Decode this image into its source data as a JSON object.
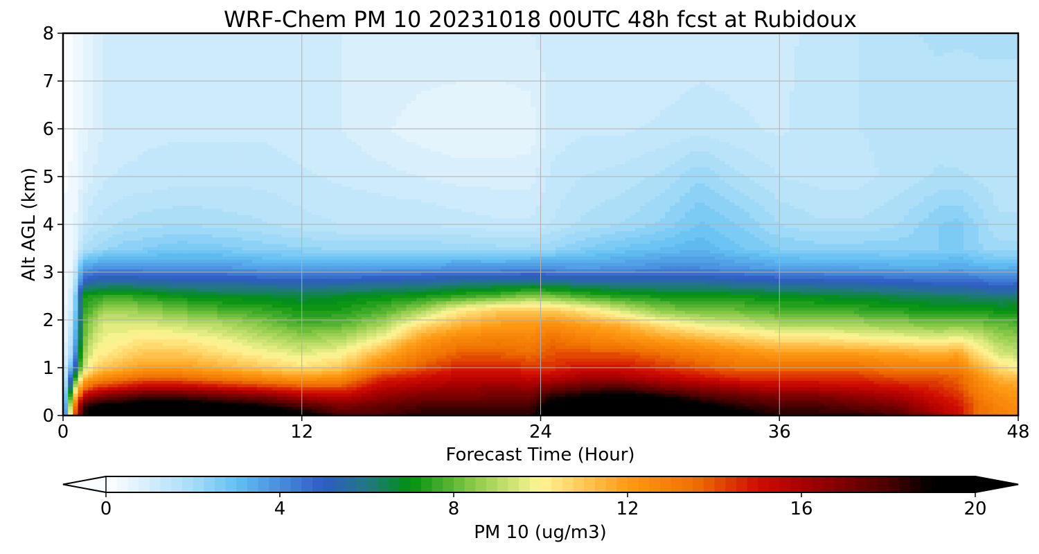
{
  "chart_data": {
    "type": "heatmap",
    "title": "WRF-Chem PM 10  20231018 00UTC 48h fcst at Rubidoux",
    "xlabel": "Forecast Time (Hour)",
    "ylabel": "Alt AGL (km)",
    "xlim": [
      0,
      48
    ],
    "ylim": [
      0,
      8
    ],
    "xticks": [
      0,
      12,
      24,
      36,
      48
    ],
    "yticks": [
      0,
      1,
      2,
      3,
      4,
      5,
      6,
      7,
      8
    ],
    "grid": true,
    "colorbar": {
      "label": "PM 10  (ug/m3)",
      "orientation": "horizontal",
      "placement": "bottom",
      "extend": "both",
      "range": [
        0,
        20
      ],
      "ticks": [
        0,
        4,
        8,
        12,
        16,
        20
      ],
      "colors": [
        {
          "value": 0,
          "color": "#ffffff"
        },
        {
          "value": 2,
          "color": "#a7dcf7"
        },
        {
          "value": 3,
          "color": "#62c0f3"
        },
        {
          "value": 5,
          "color": "#2f5bc5"
        },
        {
          "value": 6,
          "color": "#227783"
        },
        {
          "value": 7,
          "color": "#00910f"
        },
        {
          "value": 8.5,
          "color": "#8fcc4a"
        },
        {
          "value": 10,
          "color": "#fff596"
        },
        {
          "value": 12,
          "color": "#ff9a14"
        },
        {
          "value": 13.5,
          "color": "#f07200"
        },
        {
          "value": 15,
          "color": "#d00c00"
        },
        {
          "value": 16,
          "color": "#aa0000"
        },
        {
          "value": 18,
          "color": "#4a0000"
        },
        {
          "value": 19,
          "color": "#000000"
        }
      ]
    },
    "hours": [
      0,
      0.5,
      1,
      1.5,
      2,
      3,
      4,
      6,
      8,
      10,
      12,
      14,
      16,
      18,
      20,
      22,
      23.5,
      24.5,
      26,
      28,
      30,
      32,
      34,
      36,
      38,
      40,
      42,
      44,
      45,
      46,
      47,
      48
    ],
    "alts": [
      0,
      0.2,
      0.4,
      0.6,
      0.8,
      1.0,
      1.3,
      1.6,
      1.9,
      2.2,
      2.5,
      2.8,
      3.1,
      3.5,
      4.0,
      5.0,
      6.0,
      8.0
    ],
    "pm10": [
      [
        0.5,
        0.5,
        0.5,
        0.4,
        0.4,
        0.4,
        0.4,
        0.3,
        0.3,
        0.3,
        0.3,
        0.3,
        0.3,
        0.3,
        0.3,
        0.2,
        0.2,
        0.2
      ],
      [
        13,
        12,
        10,
        8,
        6,
        4,
        2.5,
        2,
        1.5,
        1.2,
        1,
        0.8,
        0.5,
        0.3,
        0.3,
        0.3,
        0.2,
        0.2
      ],
      [
        18.5,
        18,
        15.5,
        13,
        11,
        9,
        8.5,
        8,
        7.8,
        7.5,
        7.2,
        5,
        3.5,
        1.8,
        1.2,
        0.8,
        0.6,
        0.5
      ],
      [
        19.5,
        19,
        16.5,
        14,
        12,
        10.5,
        9.8,
        9.3,
        8.8,
        8,
        7.3,
        5.5,
        3.8,
        2,
        1.5,
        1,
        0.8,
        0.8
      ],
      [
        19.5,
        19.5,
        17,
        14.5,
        12.5,
        11,
        10.2,
        9.8,
        9.5,
        8.8,
        7.5,
        5.6,
        3.9,
        2.2,
        1.6,
        1.2,
        1,
        1
      ],
      [
        20,
        19.5,
        17.5,
        15,
        13,
        11.5,
        10.6,
        10,
        9.5,
        8.8,
        7.6,
        5.7,
        4,
        2.4,
        1.8,
        1.3,
        1.1,
        1.1
      ],
      [
        20,
        20,
        18,
        15.5,
        13.5,
        12,
        11,
        10.3,
        9.6,
        8.6,
        7.4,
        5.5,
        3.9,
        2.5,
        1.9,
        1.3,
        1.2,
        1.1
      ],
      [
        20,
        20,
        18,
        15.5,
        13.5,
        12,
        11,
        10.2,
        9.3,
        8.2,
        7,
        5.4,
        3.8,
        2.7,
        2,
        1.4,
        1.2,
        1.1
      ],
      [
        20,
        19.5,
        17.5,
        15,
        13,
        11.5,
        10.5,
        9.8,
        9,
        7.8,
        6.8,
        5.4,
        3.8,
        2.6,
        1.9,
        1.4,
        1.2,
        1.1
      ],
      [
        20,
        19,
        17,
        14.5,
        12.5,
        11,
        10,
        9.2,
        8.4,
        7.6,
        6.8,
        5.3,
        3.6,
        2.4,
        1.8,
        1.4,
        1.2,
        1.1
      ],
      [
        19.5,
        18,
        16,
        14,
        12,
        10.5,
        9.6,
        8.7,
        7.8,
        7.2,
        6.6,
        5.2,
        3.5,
        2.3,
        1.6,
        1.3,
        1.1,
        1.1
      ],
      [
        18,
        17,
        15.5,
        14,
        12.5,
        11,
        10,
        9,
        8,
        7.3,
        6.8,
        5.3,
        3.5,
        2.2,
        1.5,
        1.2,
        1,
        1
      ],
      [
        18,
        17.5,
        16.5,
        15.5,
        14.5,
        13,
        11.5,
        10,
        8.8,
        7.8,
        7,
        5.4,
        3.6,
        2.2,
        1.5,
        1.1,
        0.8,
        1
      ],
      [
        18.5,
        18,
        17,
        16,
        15,
        14,
        13,
        12,
        10.5,
        8.8,
        7.2,
        5.5,
        3.7,
        2.2,
        1.5,
        1,
        0.6,
        1
      ],
      [
        18.5,
        18,
        17,
        16.3,
        15.5,
        14.8,
        13.8,
        12.8,
        11.5,
        10.3,
        7.6,
        5.8,
        3.8,
        2.2,
        1.4,
        0.9,
        0.5,
        1
      ],
      [
        18.5,
        18,
        17.2,
        16.5,
        15.5,
        14.8,
        13.8,
        13,
        12,
        11,
        8,
        5.8,
        3.8,
        2.1,
        1.3,
        0.9,
        0.5,
        1
      ],
      [
        18.5,
        18,
        17.2,
        16.3,
        15.3,
        14.5,
        13.5,
        12.8,
        12,
        11,
        8.5,
        5.9,
        3.9,
        2.1,
        1.3,
        0.9,
        0.6,
        1
      ],
      [
        20,
        19.5,
        18.5,
        17,
        15.5,
        14.5,
        14,
        13.5,
        12.5,
        11,
        8.3,
        5.9,
        3.8,
        2.2,
        1.5,
        1.3,
        1.1,
        1.1
      ],
      [
        20,
        20,
        19,
        17.5,
        16,
        15,
        14,
        13,
        12,
        10.5,
        7.8,
        5.7,
        3.7,
        2.5,
        1.8,
        1.5,
        1.2,
        1.1
      ],
      [
        20,
        20,
        19.5,
        18,
        16,
        15,
        14,
        12.5,
        11.5,
        9.5,
        7.4,
        5.6,
        3.8,
        2.8,
        2,
        1.6,
        1.2,
        1
      ],
      [
        20,
        20,
        19,
        17,
        15.5,
        14.5,
        13.5,
        12,
        10.5,
        8.5,
        7.2,
        5.6,
        4,
        3,
        2.3,
        1.8,
        1.3,
        1
      ],
      [
        20,
        19.5,
        18,
        16.5,
        15,
        14,
        13,
        11.5,
        9.8,
        8.2,
        7.2,
        5.6,
        4,
        3.2,
        2.8,
        2.2,
        1.4,
        1.1
      ],
      [
        19.5,
        18.5,
        17.5,
        16,
        14.5,
        13.5,
        12.5,
        11,
        9.5,
        8.1,
        7.1,
        5.4,
        3.8,
        2.8,
        2.5,
        1.8,
        1.3,
        1.1
      ],
      [
        18.5,
        18,
        17,
        15.5,
        14.5,
        13.5,
        12,
        10.5,
        9,
        7.8,
        6.9,
        5.3,
        3.6,
        2.5,
        2,
        1.5,
        1.2,
        1.2
      ],
      [
        18.5,
        18,
        17,
        15.5,
        14.5,
        13.5,
        12,
        10.5,
        9,
        7.8,
        6.8,
        5.2,
        3.5,
        2.4,
        1.8,
        1.4,
        1.4,
        1.3
      ],
      [
        18.5,
        17.5,
        16.5,
        15.3,
        14.5,
        13.5,
        12,
        10.2,
        8.8,
        7.6,
        6.7,
        5.1,
        3.5,
        2.4,
        1.8,
        1.4,
        1.5,
        1.5
      ],
      [
        18,
        17,
        16,
        15,
        14,
        13,
        11.8,
        10,
        8.6,
        7.4,
        6.5,
        5,
        3.4,
        2.4,
        2,
        1.6,
        1.6,
        1.7
      ],
      [
        16,
        15.5,
        15,
        14.5,
        14,
        13,
        11.5,
        9.8,
        8.3,
        7.2,
        6.3,
        4.8,
        3.4,
        2.5,
        2.5,
        1.8,
        1.6,
        1.8
      ],
      [
        15,
        15,
        14.5,
        14,
        13.8,
        13,
        11.8,
        10,
        8.5,
        7.2,
        6.3,
        4.8,
        3.5,
        2.6,
        2.6,
        1.8,
        1.5,
        1.8
      ],
      [
        13.5,
        13.5,
        13.2,
        12.8,
        12.5,
        11.5,
        10.5,
        9.5,
        8.3,
        7.2,
        6.2,
        4.7,
        3.3,
        2.3,
        2.2,
        1.7,
        1.6,
        1.8
      ],
      [
        13,
        12.8,
        12.5,
        12,
        11.5,
        10.5,
        9.5,
        8.8,
        8.1,
        7.1,
        6,
        4.5,
        3.2,
        2.1,
        1.8,
        1.6,
        1.6,
        1.8
      ],
      [
        12.5,
        12.5,
        12.2,
        11.8,
        11.2,
        10.2,
        9.2,
        8.6,
        7.9,
        7.1,
        6.1,
        4.6,
        3.3,
        2.1,
        1.8,
        1.6,
        1.6,
        1.8
      ]
    ]
  }
}
